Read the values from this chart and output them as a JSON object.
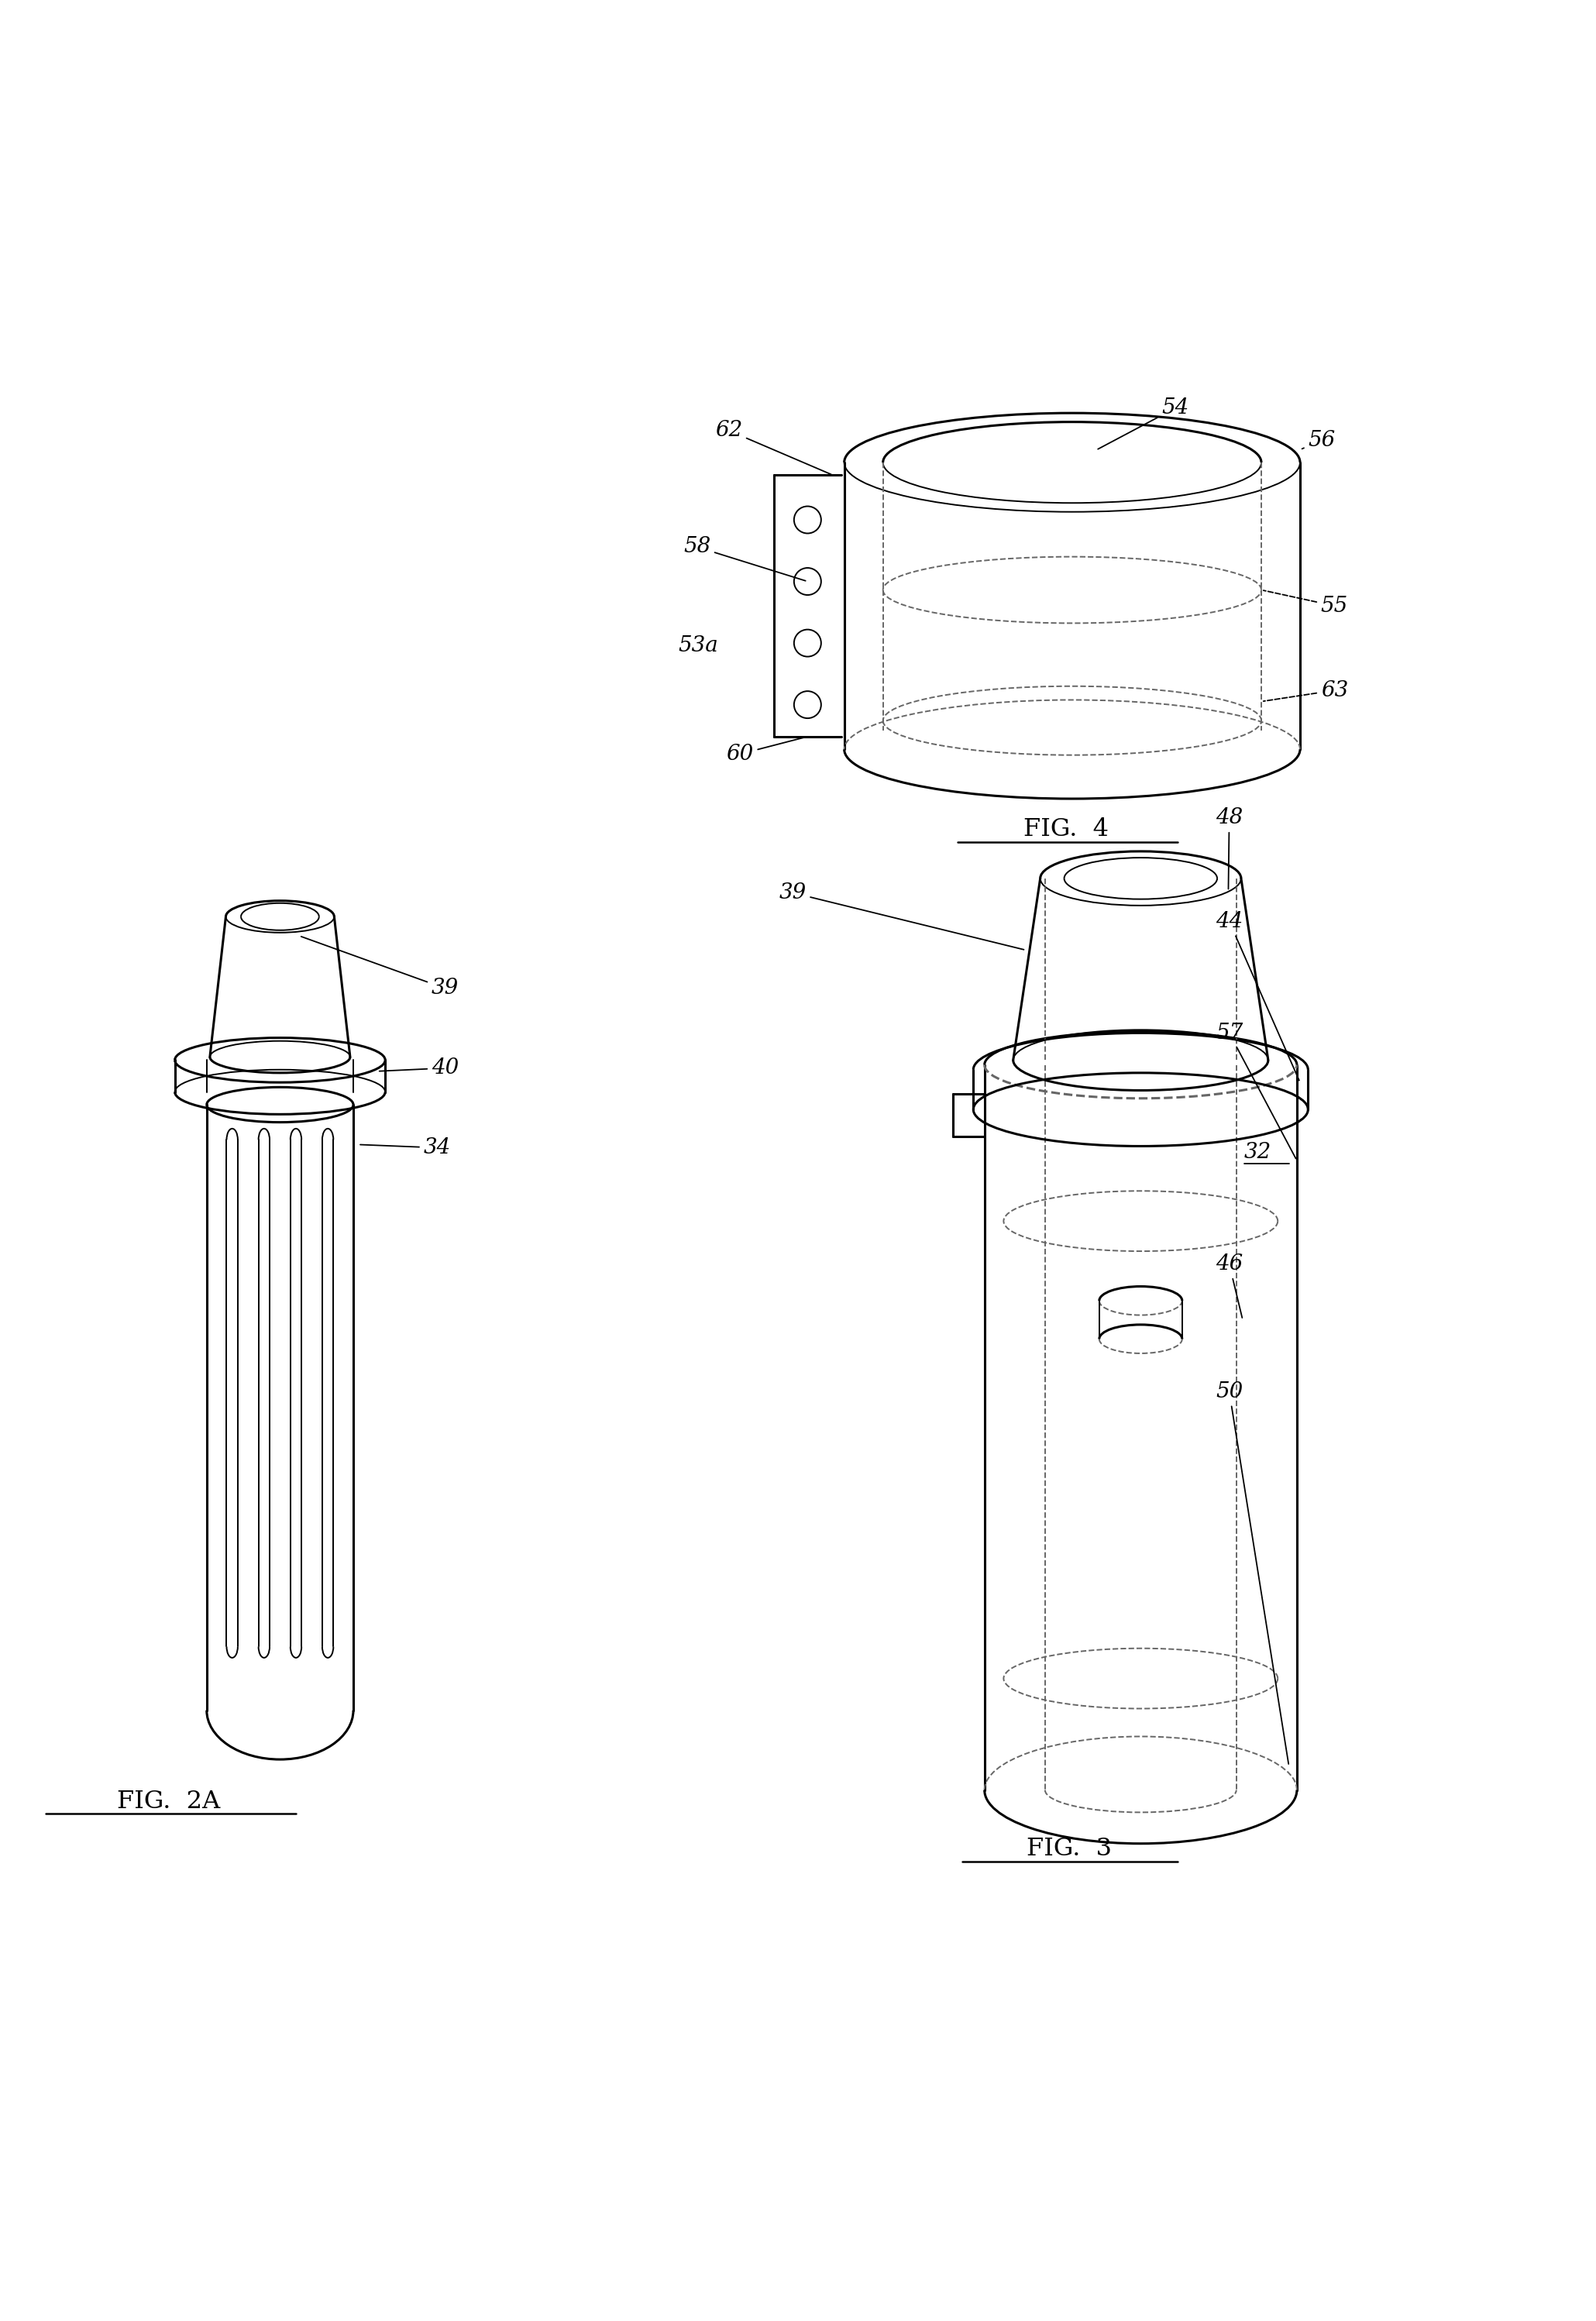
{
  "bg_color": "#ffffff",
  "line_color": "#000000",
  "dashed_color": "#666666",
  "fig2a_label": "FIG.  2A",
  "fig3_label": "FIG.  3",
  "fig4_label": "FIG.  4"
}
